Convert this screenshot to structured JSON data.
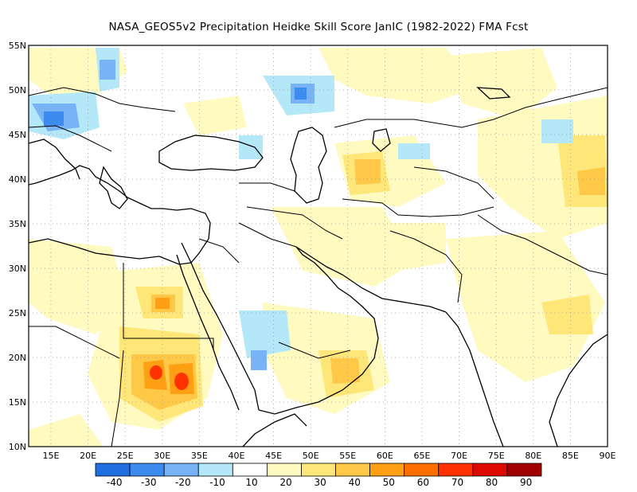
{
  "title": "NASA_GEOS5v2  Precipitation Heidke Skill Score JanIC (1982-2022) FMA Fcst",
  "axes": {
    "lat_labels": [
      "10N",
      "15N",
      "20N",
      "25N",
      "30N",
      "35N",
      "40N",
      "45N",
      "50N",
      "55N"
    ],
    "lon_labels": [
      "15E",
      "20E",
      "25E",
      "30E",
      "35E",
      "40E",
      "45E",
      "50E",
      "55E",
      "60E",
      "65E",
      "70E",
      "75E",
      "80E",
      "85E",
      "90E"
    ]
  },
  "colorbar": {
    "labels": [
      "-40",
      "-30",
      "-20",
      "-10",
      "10",
      "20",
      "30",
      "40",
      "50",
      "60",
      "70",
      "80",
      "90"
    ],
    "colors": [
      "#1f6fe0",
      "#3c8cf0",
      "#78b4f5",
      "#b4e8f8",
      "#ffffff",
      "#fffac0",
      "#ffe678",
      "#ffc846",
      "#ffa014",
      "#ff6e00",
      "#ff3200",
      "#dc0a00",
      "#a00000"
    ]
  },
  "chart_data": {
    "type": "heatmap",
    "title": "NASA_GEOS5v2  Precipitation Heidke Skill Score JanIC (1982-2022) FMA Fcst",
    "xlim": [
      12,
      90
    ],
    "ylim": [
      10,
      55
    ],
    "colorbar_levels": [
      -40,
      -30,
      -20,
      -10,
      10,
      20,
      30,
      40,
      50,
      60,
      70,
      80,
      90
    ],
    "notable_regions": [
      {
        "lon": 29.5,
        "lat": 18,
        "value": 70
      },
      {
        "lon": 33,
        "lat": 17,
        "value": 60
      },
      {
        "lon": 30,
        "lat": 26,
        "value": 50
      },
      {
        "lon": 57,
        "lat": 17,
        "value": 40
      },
      {
        "lon": 88,
        "lat": 40,
        "value": 40
      },
      {
        "lon": 47,
        "lat": 50,
        "value": -30
      },
      {
        "lon": 16,
        "lat": 46.5,
        "value": -30
      },
      {
        "lon": 43,
        "lat": 19.5,
        "value": -30
      }
    ]
  }
}
